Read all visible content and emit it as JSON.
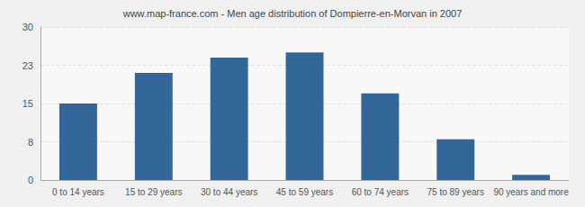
{
  "chart_data": {
    "type": "bar",
    "title": "www.map-france.com - Men age distribution of Dompierre-en-Morvan in 2007",
    "categories": [
      "0 to 14 years",
      "15 to 29 years",
      "30 to 44 years",
      "45 to 59 years",
      "60 to 74 years",
      "75 to 89 years",
      "90 years and more"
    ],
    "values": [
      15,
      21,
      24,
      25,
      17,
      8,
      1
    ],
    "color": "#336699",
    "ylim": [
      0,
      30
    ],
    "yticks": [
      0,
      {
        "value": 7.5,
        "label": "8"
      },
      15,
      {
        "value": 22.5,
        "label": "23"
      },
      30
    ],
    "grid": true
  }
}
